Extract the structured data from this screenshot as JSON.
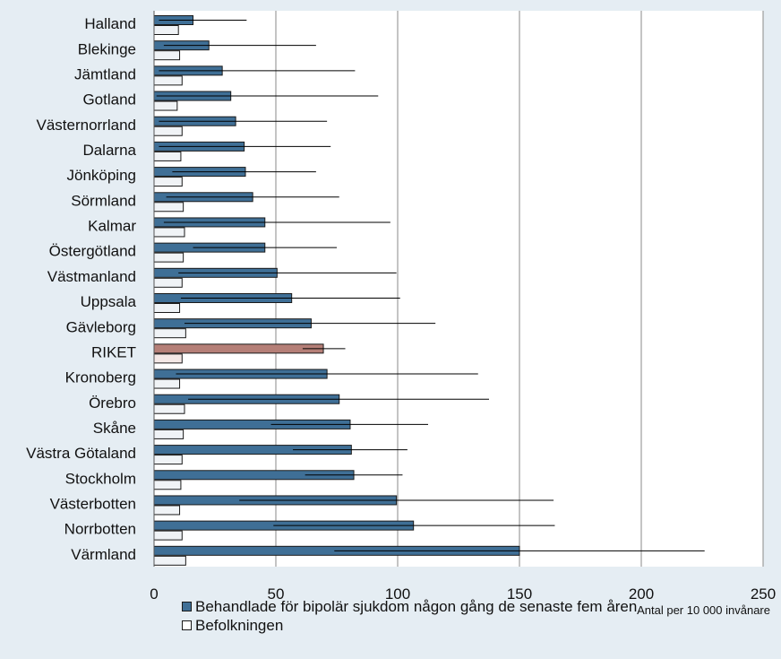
{
  "chart_data": {
    "type": "bar",
    "orientation": "horizontal",
    "categories": [
      "Halland",
      "Blekinge",
      "Jämtland",
      "Gotland",
      "Västernorrland",
      "Dalarna",
      "Jönköping",
      "Sörmland",
      "Kalmar",
      "Östergötland",
      "Västmanland",
      "Uppsala",
      "Gävleborg",
      "RIKET",
      "Kronoberg",
      "Örebro",
      "Skåne",
      "Västra Götaland",
      "Stockholm",
      "Västerbotten",
      "Norrbotten",
      "Värmland"
    ],
    "highlight_category": "RIKET",
    "series": [
      {
        "name": "Behandlade för bipolär sjukdom någon gång de senaste fem åren",
        "color": "#3f6f96",
        "highlight_color": "#b57f77",
        "values": [
          16,
          22.5,
          28,
          31.5,
          33.5,
          37,
          37.5,
          40.5,
          45.5,
          45.5,
          50.5,
          56.5,
          64.5,
          69.5,
          71,
          76,
          80.5,
          81,
          82,
          99.5,
          106.5,
          150
        ],
        "error_low": [
          2,
          4,
          2,
          1,
          2,
          2,
          7.5,
          5,
          4,
          16,
          10,
          11,
          12.5,
          61,
          9,
          14,
          48,
          57,
          62,
          35,
          49,
          74
        ],
        "error_high": [
          38,
          66.5,
          82.5,
          92,
          71,
          72.5,
          66.5,
          76,
          97,
          75,
          99.5,
          101,
          115.5,
          78.5,
          133,
          137.5,
          112.5,
          104,
          102,
          164,
          164.5,
          226
        ]
      },
      {
        "name": "Befolkningen",
        "color": "#f0f3f6",
        "highlight_color": "#f4e8e6",
        "values": [
          10,
          10.5,
          11.5,
          9.5,
          11.5,
          11,
          11.5,
          12,
          12.5,
          12,
          11.5,
          10.5,
          13,
          11.5,
          10.5,
          12.5,
          12,
          11.5,
          11,
          10.5,
          11.5,
          13
        ]
      }
    ],
    "xaxis": {
      "ticks": [
        0,
        50,
        100,
        150,
        200,
        250
      ],
      "tick_labels": [
        "0",
        "50",
        "100",
        "150",
        "200",
        "250"
      ],
      "range": [
        0,
        250
      ],
      "label": "Antal per 10 000 invånare"
    },
    "grid": true,
    "legend_position": "bottom"
  },
  "colors": {
    "background": "#e5edf3",
    "plot_background": "#ffffff",
    "gridline": "#8a8a8a"
  }
}
